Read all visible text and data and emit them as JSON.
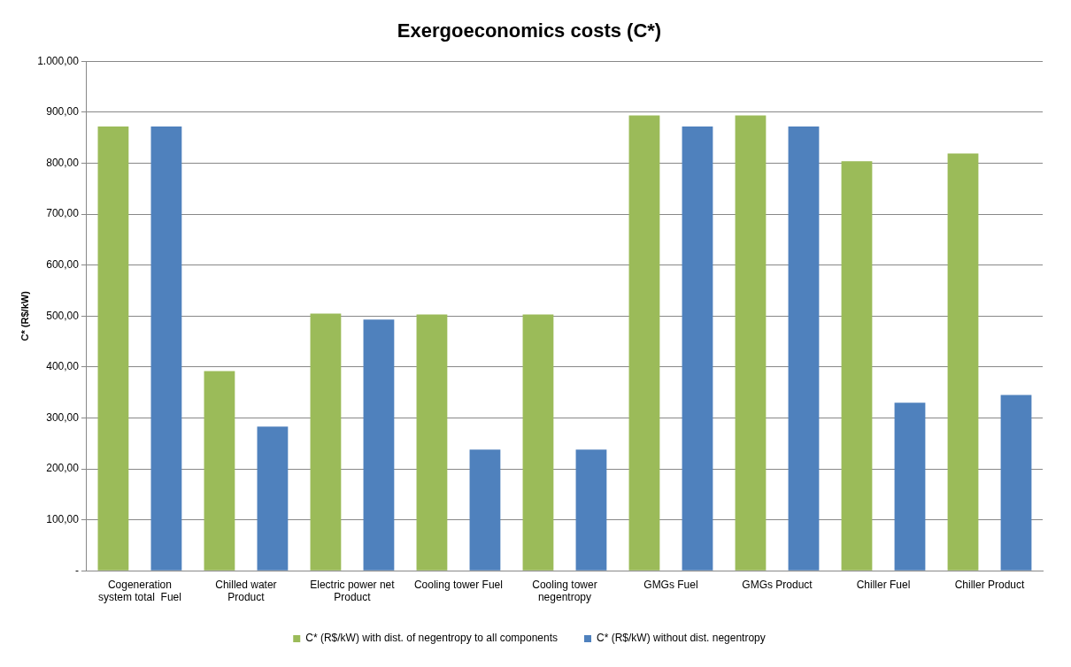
{
  "chart_data": {
    "type": "bar",
    "title": "Exergoeconomics costs (C*)",
    "ylabel": "C* (R$/kW)",
    "categories": [
      "Cogeneration system total  Fuel",
      "Chilled water Product",
      "Electric power net Product",
      "Cooling tower Fuel",
      "Cooling tower negentropy",
      "GMGs Fuel",
      "GMGs Product",
      "Chiller Fuel",
      "Chiller Product"
    ],
    "series": [
      {
        "name": "C* (R$/kW) with dist. of negentropy to all components",
        "color": "#9bbb59",
        "values": [
          872,
          392,
          505,
          503,
          503,
          894,
          894,
          804,
          819
        ]
      },
      {
        "name": "C* (R$/kW) without dist. negentropy",
        "color": "#4f81bd",
        "values": [
          872,
          283,
          493,
          238,
          238,
          872,
          872,
          330,
          345
        ]
      }
    ],
    "ylim": [
      0,
      1000
    ],
    "yticks": [
      {
        "value": 0,
        "label": "-"
      },
      {
        "value": 100,
        "label": "100,00"
      },
      {
        "value": 200,
        "label": "200,00"
      },
      {
        "value": 300,
        "label": "300,00"
      },
      {
        "value": 400,
        "label": "400,00"
      },
      {
        "value": 500,
        "label": "500,00"
      },
      {
        "value": 600,
        "label": "600,00"
      },
      {
        "value": 700,
        "label": "700,00"
      },
      {
        "value": 800,
        "label": "800,00"
      },
      {
        "value": 900,
        "label": "900,00"
      },
      {
        "value": 1000,
        "label": "1.000,00"
      }
    ],
    "grid": "y",
    "legend": "bottom"
  }
}
